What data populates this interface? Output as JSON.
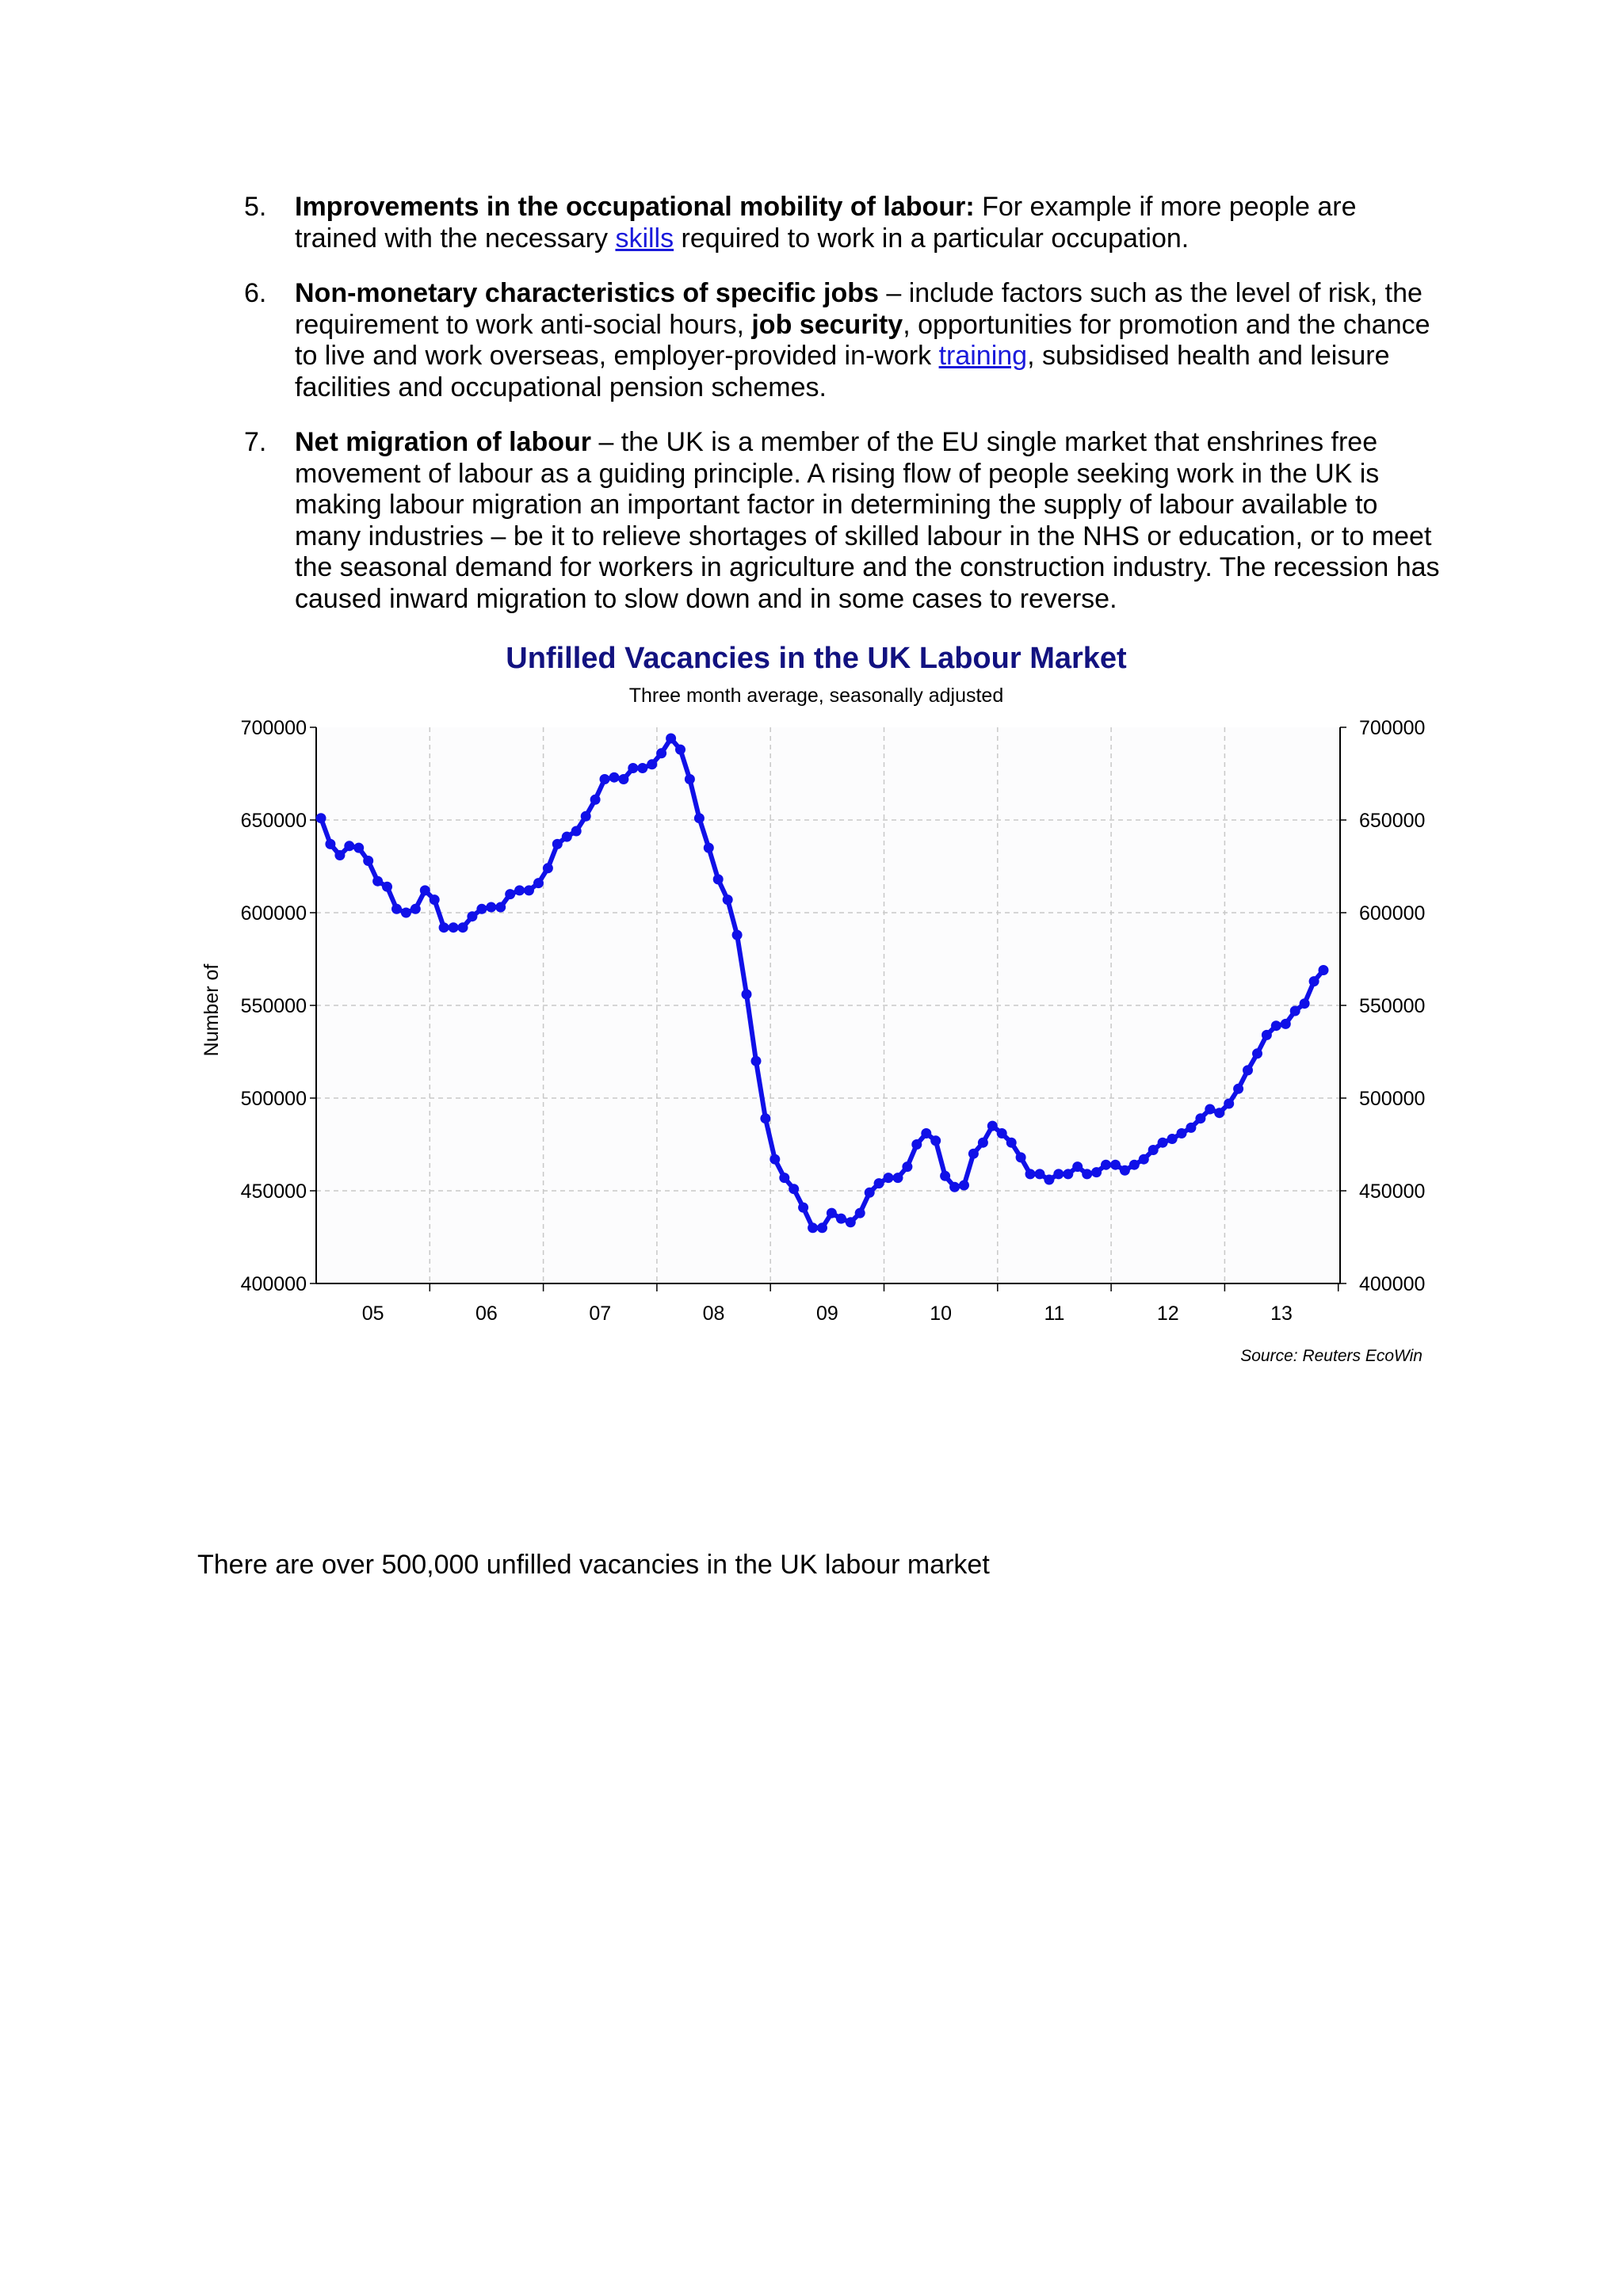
{
  "list": [
    {
      "number": "5.",
      "lead": "Improvements in the occupational mobility of labour:",
      "t1": " For example if more people are trained with the necessary ",
      "link1": "skills",
      "t2": " required to work in a particular occupation."
    },
    {
      "number": "6.",
      "lead": "Non-monetary characteristics of specific jobs",
      "t1": " – include factors such as the level of risk, the requirement to work anti-social hours, ",
      "b1": "job security",
      "t2": ", opportunities for promotion and the chance to live and work overseas, employer-provided in-work ",
      "link1": "training",
      "t3": ", subsidised health and leisure facilities and occupational pension schemes."
    },
    {
      "number": "7.",
      "lead": "Net migration of labour",
      "t1": " – the UK is a member of the EU single market that enshrines free movement of labour as a guiding principle. A rising flow of people seeking work in the UK is making labour migration an important factor in determining the supply of labour available to many industries – be it to relieve shortages of skilled labour in the NHS or education, or to meet the seasonal demand for workers in agriculture and the construction industry. The recession has caused inward migration to slow down and in some cases to reverse."
    }
  ],
  "chart_data": {
    "type": "line",
    "title": "Unfilled Vacancies in the UK Labour Market",
    "subtitle": "Three month average, seasonally adjusted",
    "ylabel": "Number of",
    "source": "Source: Reuters EcoWin",
    "ylim": [
      400000,
      700000
    ],
    "yticks": [
      "700000",
      "650000",
      "600000",
      "550000",
      "500000",
      "450000",
      "400000"
    ],
    "xtick_labels": [
      "05",
      "06",
      "07",
      "08",
      "09",
      "10",
      "11",
      "12",
      "13"
    ],
    "grid": true,
    "color": "#1010e8",
    "series": [
      {
        "values": [
          651000,
          637000,
          631000,
          636000,
          635000,
          628000,
          617000,
          614000,
          602000,
          600000,
          602000,
          612000,
          607000,
          592000,
          592000,
          592000,
          598000,
          602000,
          603000,
          603000,
          610000,
          612000,
          612000,
          616000,
          624000,
          637000,
          641000,
          644000,
          652000,
          661000,
          672000,
          673000,
          672000,
          678000,
          678000,
          680000,
          686000,
          694000,
          688000,
          672000,
          651000,
          635000,
          618000,
          607000,
          588000,
          556000,
          520000,
          489000,
          467000,
          457000,
          451000,
          441000,
          430000,
          430000,
          438000,
          435000,
          433000,
          438000,
          449000,
          454000,
          457000,
          457000,
          463000,
          475000,
          481000,
          477000,
          458000,
          452000,
          453000,
          470000,
          476000,
          485000,
          481000,
          476000,
          468000,
          459000,
          459000,
          456000,
          459000,
          459000,
          463000,
          459000,
          460000,
          464000,
          464000,
          461000,
          464000,
          467000,
          472000,
          476000,
          478000,
          481000,
          484000,
          489000,
          494000,
          492000,
          497000,
          505000,
          515000,
          524000,
          534000,
          539000,
          540000,
          547000,
          551000,
          563000,
          569000
        ]
      }
    ]
  },
  "caption": "There are over 500,000 unfilled vacancies in the UK labour market"
}
